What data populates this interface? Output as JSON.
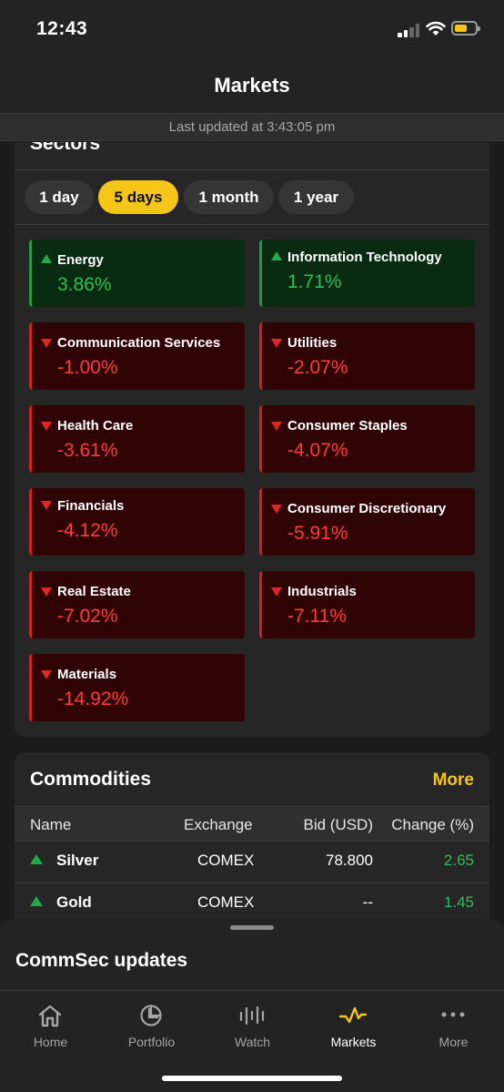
{
  "status_bar": {
    "time": "12:43"
  },
  "header": {
    "title": "Markets",
    "last_updated": "Last updated at 3:43:05 pm"
  },
  "sectors": {
    "title": "Sectors",
    "periods": [
      "1 day",
      "5 days",
      "1 month",
      "1 year"
    ],
    "active_period": "5 days",
    "tiles": [
      {
        "name": "Energy",
        "value": "3.86%",
        "direction": "up"
      },
      {
        "name": "Information Technology",
        "value": "1.71%",
        "direction": "up"
      },
      {
        "name": "Communication Services",
        "value": "-1.00%",
        "direction": "down"
      },
      {
        "name": "Utilities",
        "value": "-2.07%",
        "direction": "down"
      },
      {
        "name": "Health Care",
        "value": "-3.61%",
        "direction": "down"
      },
      {
        "name": "Consumer Staples",
        "value": "-4.07%",
        "direction": "down"
      },
      {
        "name": "Financials",
        "value": "-4.12%",
        "direction": "down"
      },
      {
        "name": "Consumer Discretionary",
        "value": "-5.91%",
        "direction": "down"
      },
      {
        "name": "Real Estate",
        "value": "-7.02%",
        "direction": "down"
      },
      {
        "name": "Industrials",
        "value": "-7.11%",
        "direction": "down"
      },
      {
        "name": "Materials",
        "value": "-14.92%",
        "direction": "down"
      }
    ]
  },
  "commodities": {
    "title": "Commodities",
    "more_label": "More",
    "columns": [
      "Name",
      "Exchange",
      "Bid (USD)",
      "Change (%)"
    ],
    "rows": [
      {
        "name": "Silver",
        "exchange": "COMEX",
        "bid": "78.800",
        "change": "2.65"
      },
      {
        "name": "Gold",
        "exchange": "COMEX",
        "bid": "--",
        "change": "1.45"
      }
    ]
  },
  "updates_sheet": {
    "title": "CommSec updates"
  },
  "tab_bar": {
    "tabs": [
      {
        "label": "Home",
        "icon": "home-icon"
      },
      {
        "label": "Portfolio",
        "icon": "pie-chart-icon"
      },
      {
        "label": "Watch",
        "icon": "watch-bars-icon"
      },
      {
        "label": "Markets",
        "icon": "markets-pulse-icon"
      },
      {
        "label": "More",
        "icon": "more-dots-icon"
      }
    ],
    "active": "Markets"
  },
  "colors": {
    "accent": "#f5c518",
    "up": "#2fbf57",
    "down": "#ff3b3b",
    "background": "#1c1c1c"
  }
}
